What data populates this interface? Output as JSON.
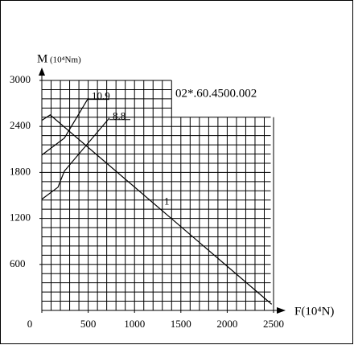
{
  "chart_data": {
    "type": "line",
    "y_label": "M",
    "y_unit": "(10⁴Nm)",
    "x_label": "F(10⁴N)",
    "annotation": "02*.60.4500.002",
    "xlim": [
      0,
      2500
    ],
    "ylim": [
      0,
      3000
    ],
    "xticks": [
      0,
      500,
      1000,
      1500,
      2000,
      2500
    ],
    "yticks": [
      600,
      1200,
      1800,
      2400,
      3000
    ],
    "grid": true,
    "series": [
      {
        "name": "1",
        "color": "#000000",
        "x": [
          0,
          90,
          2480
        ],
        "values": [
          2480,
          2550,
          80
        ]
      },
      {
        "name": "10.9",
        "color": "#000000",
        "x": [
          0,
          243,
          503
        ],
        "values": [
          2027,
          2248,
          2773
        ]
      },
      {
        "name": "8.8",
        "color": "#000000",
        "x": [
          0,
          174,
          243,
          729
        ],
        "values": [
          1450,
          1607,
          1817,
          2510
        ]
      }
    ]
  }
}
